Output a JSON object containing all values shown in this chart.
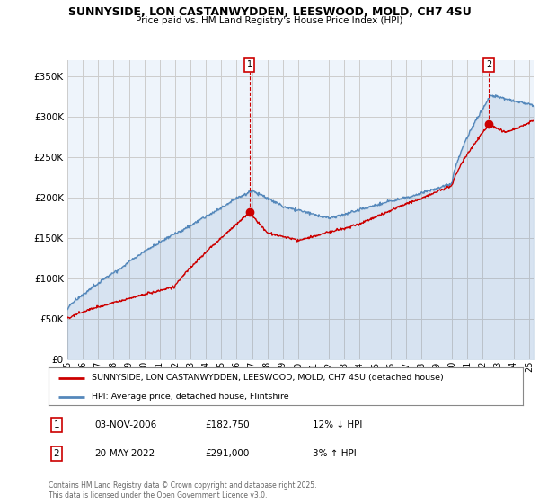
{
  "title": "SUNNYSIDE, LON CASTANWYDDEN, LEESWOOD, MOLD, CH7 4SU",
  "subtitle": "Price paid vs. HM Land Registry's House Price Index (HPI)",
  "ylabel_ticks": [
    "£0",
    "£50K",
    "£100K",
    "£150K",
    "£200K",
    "£250K",
    "£300K",
    "£350K"
  ],
  "ytick_values": [
    0,
    50000,
    100000,
    150000,
    200000,
    250000,
    300000,
    350000
  ],
  "ylim": [
    0,
    370000
  ],
  "xlim_start": 1995.0,
  "xlim_end": 2025.3,
  "sale1_x": 2006.84,
  "sale1_y": 182750,
  "sale2_x": 2022.38,
  "sale2_y": 291000,
  "sale1_date": "03-NOV-2006",
  "sale1_price": "£182,750",
  "sale1_hpi": "12% ↓ HPI",
  "sale2_date": "20-MAY-2022",
  "sale2_price": "£291,000",
  "sale2_hpi": "3% ↑ HPI",
  "legend_label_red": "SUNNYSIDE, LON CASTANWYDDEN, LEESWOOD, MOLD, CH7 4SU (detached house)",
  "legend_label_blue": "HPI: Average price, detached house, Flintshire",
  "footnote": "Contains HM Land Registry data © Crown copyright and database right 2025.\nThis data is licensed under the Open Government Licence v3.0.",
  "red_color": "#cc0000",
  "blue_color": "#5588bb",
  "fill_color": "#dde8f5",
  "grid_color": "#cccccc",
  "background_color": "#ffffff",
  "chart_bg": "#eef4fb"
}
